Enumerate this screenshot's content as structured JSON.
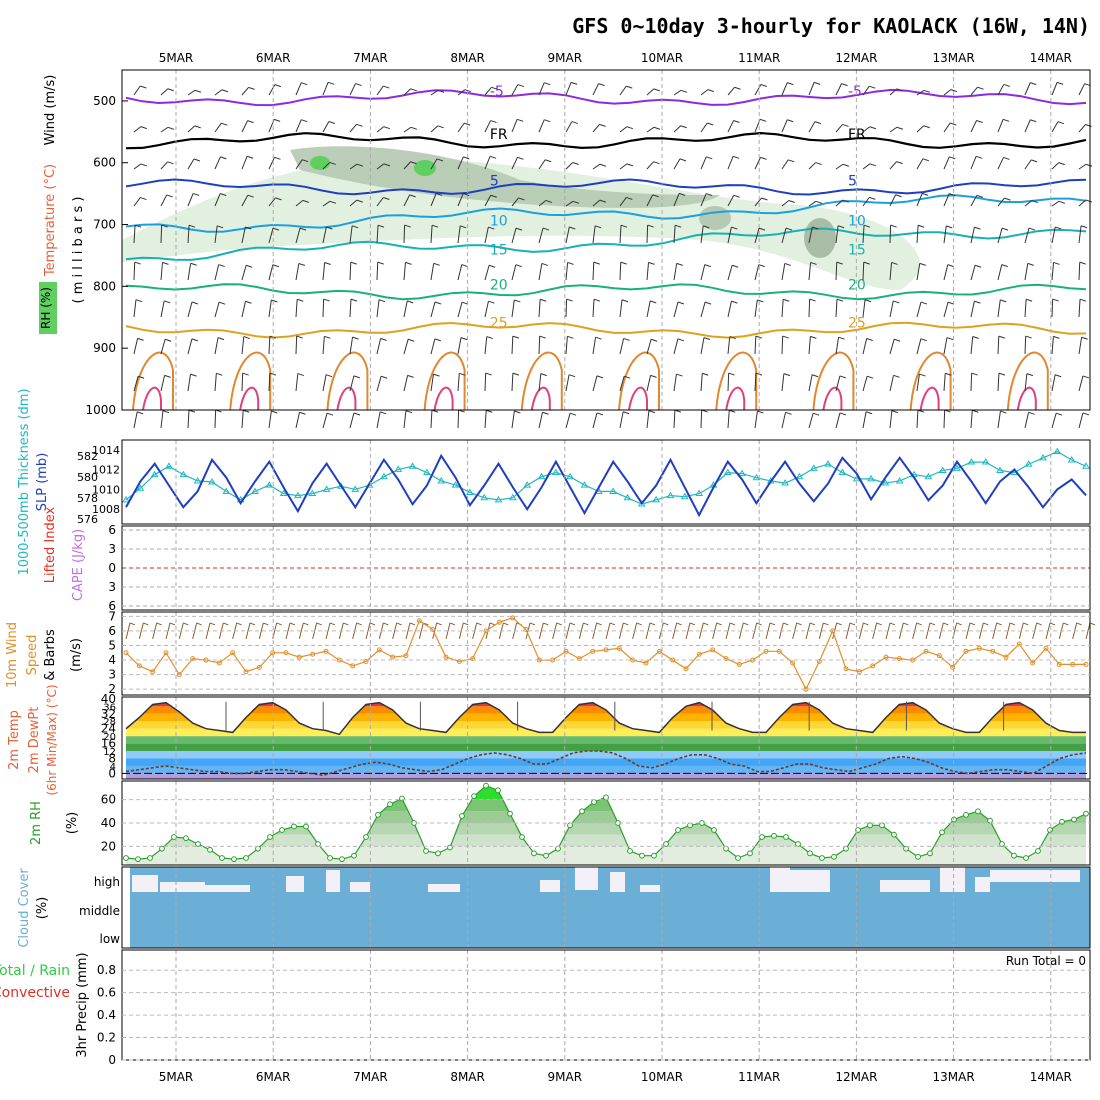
{
  "title": "GFS 0~10day 3-hourly for KAOLACK (16W, 14N)",
  "colors": {
    "temperature": "#e8603a",
    "rh": "#2ecc40",
    "slp": "#1f3fbf",
    "thickness": "#20b8c0",
    "cape": "#c070e0",
    "lifted": "#e03020",
    "wind10": "#e0902a",
    "rh2m": "#2aa02a",
    "cloud": "#6baed6",
    "precip_total": "#2ecc40",
    "precip_conv": "#e03020"
  },
  "chart_data": [
    {
      "type": "line",
      "name": "upper-air-cross-section",
      "x_categories": [
        "5MAR",
        "6MAR",
        "7MAR",
        "8MAR",
        "9MAR",
        "10MAR",
        "11MAR",
        "12MAR",
        "13MAR",
        "14MAR"
      ],
      "ylabel_parts": [
        "Wind (m/s)",
        "Temperature (°C)",
        "RH (%)"
      ],
      "yaxis_label": "( m i l l i b a r s )",
      "y_ticks": [
        500,
        600,
        700,
        800,
        900,
        1000
      ],
      "ylim": [
        450,
        1000
      ],
      "isotherms": [
        {
          "label": "-5",
          "level": 495,
          "color": "#8a2be2"
        },
        {
          "label": "FR",
          "level": 565,
          "color": "#000000"
        },
        {
          "label": "5",
          "level": 640,
          "color": "#1f3fbf"
        },
        {
          "label": "10",
          "level": 705,
          "color": "#1aa0e0"
        },
        {
          "label": "15",
          "level": 752,
          "color": "#19b0b0"
        },
        {
          "label": "20",
          "level": 808,
          "color": "#19b080"
        },
        {
          "label": "25",
          "level": 870,
          "color": "#e0a020"
        }
      ]
    },
    {
      "type": "line",
      "name": "slp-thickness",
      "ylabel_left": "1000-500mb Thickness (dm)",
      "ylabel_right": "SLP (mb)",
      "left_ticks": [
        576,
        578,
        580,
        582
      ],
      "right_ticks": [
        1008,
        1010,
        1012,
        1014
      ],
      "left_lim": [
        575.5,
        583.5
      ],
      "right_lim": [
        1006.5,
        1015
      ],
      "series": [
        {
          "name": "SLP",
          "values": [
            1008.2,
            1010.8,
            1012.6,
            1010.4,
            1008.2,
            1009.8,
            1013.0,
            1011.2,
            1008.6,
            1010.8,
            1012.8,
            1010.2,
            1007.8,
            1010.6,
            1012.6,
            1010.4,
            1008.2,
            1010.6,
            1013.0,
            1011.0,
            1008.5,
            1010.4,
            1013.4,
            1011.2,
            1008.4,
            1010.4,
            1012.6,
            1010.2,
            1008.0,
            1010.2,
            1012.8,
            1010.2,
            1007.6,
            1010.2,
            1012.8,
            1010.8,
            1008.6,
            1010.4,
            1013.0,
            1010.2,
            1007.4,
            1010.2,
            1012.8,
            1011.0,
            1008.6,
            1010.8,
            1012.8,
            1010.6,
            1008.8,
            1010.6,
            1013.2,
            1011.6,
            1009.0,
            1011.2,
            1013.2,
            1011.2,
            1008.9,
            1010.4,
            1012.8,
            1010.8,
            1008.6,
            1010.8,
            1012.0,
            1010.2,
            1008.2,
            1010.0,
            1011.0,
            1009.4
          ]
        },
        {
          "name": "Thickness",
          "values": [
            577.8,
            578.9,
            580.2,
            581.0,
            580.2,
            579.6,
            579.5,
            578.6,
            577.8,
            578.6,
            579.2,
            578.4,
            578.2,
            578.4,
            578.8,
            579.1,
            578.8,
            579.2,
            580.0,
            580.7,
            581.0,
            580.4,
            579.6,
            579.2,
            578.5,
            578.0,
            577.8,
            578.0,
            579.2,
            580.0,
            580.4,
            580.0,
            579.2,
            578.6,
            578.6,
            578.0,
            577.4,
            577.8,
            578.2,
            578.1,
            578.4,
            579.2,
            580.4,
            580.3,
            579.9,
            579.6,
            579.4,
            580.0,
            580.8,
            581.2,
            580.4,
            579.8,
            579.8,
            579.4,
            579.6,
            580.2,
            580.0,
            580.6,
            580.8,
            581.4,
            581.4,
            580.6,
            580.4,
            581.2,
            581.8,
            582.4,
            581.6,
            581.0
          ]
        }
      ]
    },
    {
      "type": "line",
      "name": "lifted-cape",
      "ylabel_left": "Lifted Index",
      "ylabel_right": "CAPE (J/kg)",
      "y_ticks": [
        -6,
        -3,
        0,
        3,
        6
      ],
      "tick_labels": [
        "6",
        "3",
        "0",
        "3",
        "6"
      ],
      "zero_line": 0
    },
    {
      "type": "line",
      "name": "wind10m",
      "ylabel_a": "10m Wind",
      "ylabel_b": "Speed",
      "ylabel_c": "& Barbs",
      "unit": "(m/s)",
      "y_ticks": [
        2,
        3,
        4,
        5,
        6,
        7
      ],
      "ylim": [
        1.6,
        7.3
      ],
      "values": [
        4.5,
        3.6,
        3.2,
        4.5,
        3.0,
        4.1,
        4.0,
        3.8,
        4.5,
        3.2,
        3.5,
        4.5,
        4.5,
        4.2,
        4.4,
        4.6,
        4.0,
        3.6,
        3.9,
        4.7,
        4.2,
        4.3,
        6.7,
        6.1,
        4.2,
        3.9,
        4.1,
        6.0,
        6.6,
        6.9,
        6.1,
        4.0,
        4.0,
        4.6,
        4.1,
        4.6,
        4.7,
        4.8,
        4.0,
        3.8,
        4.6,
        4.0,
        3.4,
        4.4,
        4.7,
        4.1,
        3.7,
        4.0,
        4.6,
        4.6,
        3.8,
        2.0,
        3.9,
        6.0,
        3.4,
        3.2,
        3.6,
        4.2,
        4.1,
        4.0,
        4.6,
        4.3,
        3.5,
        4.6,
        4.8,
        4.6,
        4.2,
        5.1,
        3.8,
        4.8,
        3.7,
        3.7,
        3.7
      ]
    },
    {
      "type": "area",
      "name": "temperature-2m",
      "ylabel_a": "2m Temp",
      "ylabel_b": "2m DewPt",
      "ylabel_c": "(6hr Min/Max) (°C)",
      "y_ticks": [
        0,
        8,
        16,
        24,
        32,
        40
      ],
      "y_ticks_minor": [
        4,
        12,
        20,
        28,
        36
      ],
      "ylim": [
        -3,
        41
      ],
      "temp_values": [
        24,
        30,
        37,
        38,
        33,
        27,
        24,
        23,
        22,
        30,
        37,
        38,
        34,
        27,
        24,
        23,
        21,
        30,
        37,
        38,
        34,
        27,
        24,
        23,
        22,
        30,
        37,
        38,
        34,
        27,
        24,
        22,
        22,
        30,
        37,
        38,
        34,
        27,
        24,
        23,
        22,
        30,
        36,
        38,
        34,
        27,
        24,
        22,
        22,
        30,
        37,
        38,
        34,
        27,
        24,
        23,
        22,
        30,
        37,
        38,
        34,
        27,
        24,
        22,
        22,
        30,
        37,
        38,
        34,
        27,
        23,
        22,
        22
      ],
      "dewpt_values": [
        1,
        2,
        3,
        4,
        3,
        2,
        1,
        1,
        0,
        0,
        1,
        2,
        2,
        1,
        0,
        -1,
        1,
        3,
        5,
        6,
        5,
        3,
        2,
        1,
        2,
        5,
        8,
        10,
        11,
        10,
        8,
        5,
        5,
        8,
        11,
        12,
        12,
        11,
        8,
        4,
        3,
        5,
        8,
        10,
        10,
        8,
        5,
        4,
        1,
        1,
        3,
        5,
        5,
        3,
        2,
        1,
        3,
        5,
        8,
        9,
        8,
        6,
        3,
        1,
        0,
        1,
        2,
        2,
        1,
        0,
        4,
        8,
        10,
        11
      ]
    },
    {
      "type": "area",
      "name": "rh-2m",
      "ylabel": "2m RH",
      "unit": "(%)",
      "y_ticks": [
        20,
        40,
        60
      ],
      "ylim": [
        4,
        76
      ],
      "values": [
        10,
        9,
        10,
        18,
        28,
        27,
        22,
        17,
        10,
        9,
        10,
        18,
        28,
        34,
        37,
        37,
        22,
        10,
        9,
        12,
        28,
        47,
        56,
        61,
        40,
        16,
        14,
        19,
        46,
        63,
        72,
        68,
        48,
        28,
        14,
        12,
        18,
        38,
        50,
        58,
        62,
        40,
        16,
        12,
        12,
        22,
        34,
        38,
        40,
        34,
        18,
        10,
        14,
        28,
        29,
        28,
        22,
        14,
        10,
        11,
        18,
        34,
        38,
        38,
        30,
        18,
        11,
        14,
        32,
        43,
        47,
        50,
        42,
        22,
        12,
        10,
        16,
        34,
        41,
        43,
        48
      ]
    },
    {
      "type": "area",
      "name": "cloud-cover",
      "ylabel": "Cloud Cover",
      "unit": "(%)",
      "layer_labels": [
        "high",
        "middle",
        "low"
      ]
    },
    {
      "type": "bar",
      "name": "precip",
      "ylabel_a": "Total / Rain",
      "ylabel_b": "Convective",
      "ylabel_c": "3hr Precip (mm)",
      "y_ticks": [
        0,
        0.2,
        0.4,
        0.6,
        0.8
      ],
      "ylim": [
        0,
        0.98
      ],
      "run_total": "Run Total = 0",
      "values": []
    }
  ]
}
